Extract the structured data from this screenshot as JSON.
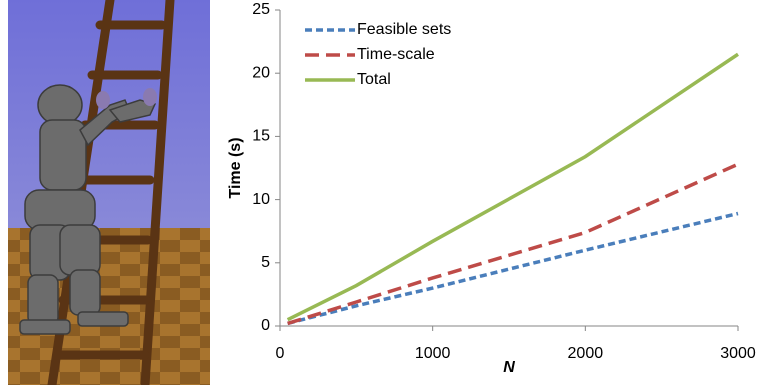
{
  "chart_data": {
    "type": "line",
    "x_label": "N",
    "y_label": "Time (s)",
    "x": [
      50,
      500,
      1000,
      2000,
      3000
    ],
    "series": [
      {
        "name": "Feasible sets",
        "color": "#4a7ebb",
        "values": [
          0.2,
          1.6,
          3.0,
          6.0,
          8.9
        ]
      },
      {
        "name": "Time-scale",
        "color": "#be4b48",
        "values": [
          0.2,
          1.9,
          3.8,
          7.4,
          12.8
        ]
      },
      {
        "name": "Total",
        "color": "#98b954",
        "values": [
          0.5,
          3.2,
          6.7,
          13.4,
          21.5
        ]
      }
    ],
    "xlim": [
      0,
      3000
    ],
    "xticks": [
      0,
      1000,
      2000,
      3000
    ],
    "ylim": [
      0,
      25
    ],
    "yticks": [
      0,
      5,
      10,
      15,
      20,
      25
    ],
    "grid": false,
    "legend": "upper left"
  }
}
